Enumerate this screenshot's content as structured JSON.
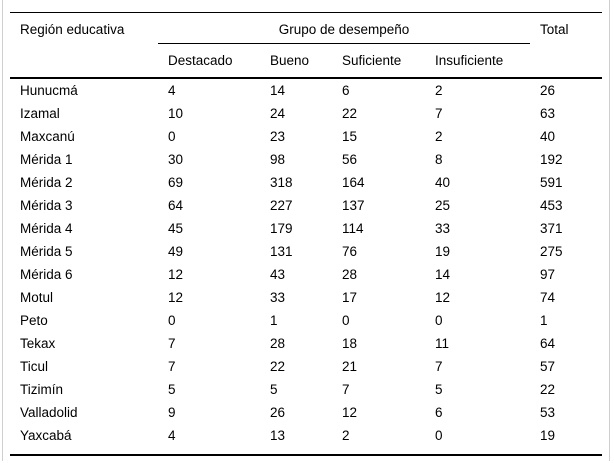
{
  "page": {
    "background": "#ffffff",
    "text_color": "#000000",
    "rule_color": "#000000",
    "frame_color": "#cfcfcf"
  },
  "chart_data": {
    "type": "table",
    "title": "",
    "col_region": "Región educativa",
    "group_label": "Grupo de desempeño",
    "col_total": "Total",
    "subcolumns": [
      "Destacado",
      "Bueno",
      "Suficiente",
      "Insuficiente"
    ],
    "rows": [
      {
        "region": "Hunucmá",
        "values": [
          4,
          14,
          6,
          2
        ],
        "total": 26
      },
      {
        "region": "Izamal",
        "values": [
          10,
          24,
          22,
          7
        ],
        "total": 63
      },
      {
        "region": "Maxcanú",
        "values": [
          0,
          23,
          15,
          2
        ],
        "total": 40
      },
      {
        "region": "Mérida 1",
        "values": [
          30,
          98,
          56,
          8
        ],
        "total": 192
      },
      {
        "region": "Mérida 2",
        "values": [
          69,
          318,
          164,
          40
        ],
        "total": 591
      },
      {
        "region": "Mérida 3",
        "values": [
          64,
          227,
          137,
          25
        ],
        "total": 453
      },
      {
        "region": "Mérida 4",
        "values": [
          45,
          179,
          114,
          33
        ],
        "total": 371
      },
      {
        "region": "Mérida 5",
        "values": [
          49,
          131,
          76,
          19
        ],
        "total": 275
      },
      {
        "region": "Mérida 6",
        "values": [
          12,
          43,
          28,
          14
        ],
        "total": 97
      },
      {
        "region": "Motul",
        "values": [
          12,
          33,
          17,
          12
        ],
        "total": 74
      },
      {
        "region": "Peto",
        "values": [
          0,
          1,
          0,
          0
        ],
        "total": 1
      },
      {
        "region": "Tekax",
        "values": [
          7,
          28,
          18,
          11
        ],
        "total": 64
      },
      {
        "region": "Ticul",
        "values": [
          7,
          22,
          21,
          7
        ],
        "total": 57
      },
      {
        "region": "Tizimín",
        "values": [
          5,
          5,
          7,
          5
        ],
        "total": 22
      },
      {
        "region": "Valladolid",
        "values": [
          9,
          26,
          12,
          6
        ],
        "total": 53
      },
      {
        "region": "Yaxcabá",
        "values": [
          4,
          13,
          2,
          0
        ],
        "total": 19
      }
    ]
  }
}
